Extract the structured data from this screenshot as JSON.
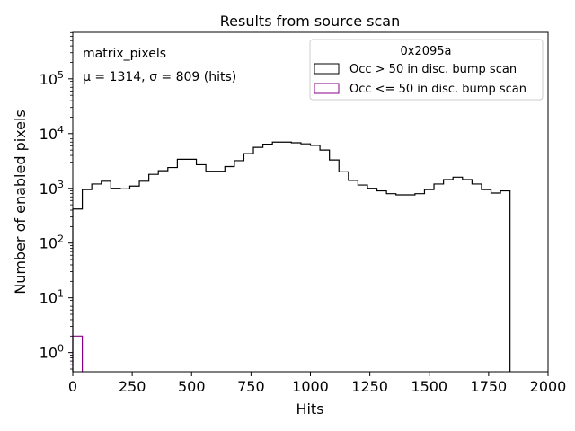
{
  "chart_data": {
    "type": "histogram",
    "title": "Results from source scan",
    "xlabel": "Hits",
    "ylabel": "Number of enabled pixels",
    "xlim": [
      0,
      2000
    ],
    "ylog": true,
    "ylim_exp": [
      -0.35,
      5.85
    ],
    "x_ticks": [
      0,
      250,
      500,
      750,
      1000,
      1250,
      1500,
      1750,
      2000
    ],
    "x_tick_labels": [
      "0",
      "250",
      "500",
      "750",
      "1000",
      "1250",
      "1500",
      "1750",
      "2000"
    ],
    "y_tick_exponents": [
      0,
      1,
      2,
      3,
      4,
      5
    ],
    "y_tick_base": "10",
    "annotation_lines": [
      "matrix_pixels",
      "μ = 1314, σ = 809 (hits)"
    ],
    "legend": {
      "title": "0x2095a",
      "placement": "top-right",
      "entries": [
        "Occ > 50 in disc. bump scan",
        "Occ <= 50 in disc. bump scan"
      ]
    },
    "bin_width": 40,
    "series": [
      {
        "color": "#000000",
        "bin_start": 0,
        "values": [
          420,
          950,
          1200,
          1350,
          1000,
          980,
          1100,
          1350,
          1800,
          2100,
          2400,
          3400,
          3400,
          2700,
          2050,
          2050,
          2500,
          3200,
          4300,
          5600,
          6400,
          7000,
          7000,
          6800,
          6500,
          6100,
          5000,
          3300,
          2000,
          1400,
          1150,
          1000,
          900,
          800,
          760,
          760,
          800,
          950,
          1200,
          1450,
          1600,
          1450,
          1200,
          950,
          820,
          900
        ]
      },
      {
        "color": "#8b008b",
        "bin_start": 0,
        "values": [
          2
        ]
      }
    ]
  }
}
